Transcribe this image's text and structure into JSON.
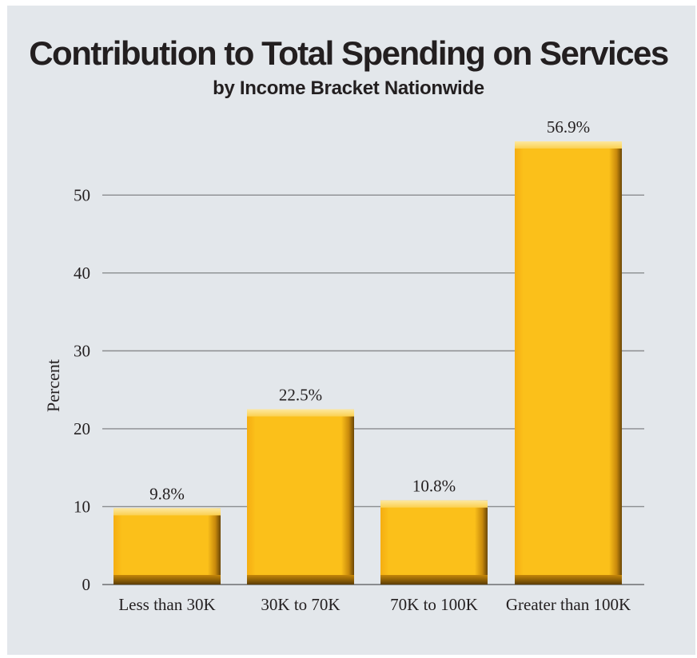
{
  "chart_data": {
    "type": "bar",
    "title": "Contribution to Total Spending on Services",
    "subtitle": "by Income Bracket Nationwide",
    "xlabel": "",
    "ylabel": "Percent",
    "categories": [
      "Less than 30K",
      "30K to 70K",
      "70K to 100K",
      "Greater than 100K"
    ],
    "values": [
      9.8,
      22.5,
      10.8,
      56.9
    ],
    "data_labels": [
      "9.8%",
      "22.5%",
      "10.8%",
      "56.9%"
    ],
    "yticks": [
      0,
      10,
      20,
      30,
      40,
      50
    ],
    "ylim": [
      0,
      56.9
    ],
    "grid": true,
    "legend": "none",
    "bar_color": "#f9bd18"
  }
}
